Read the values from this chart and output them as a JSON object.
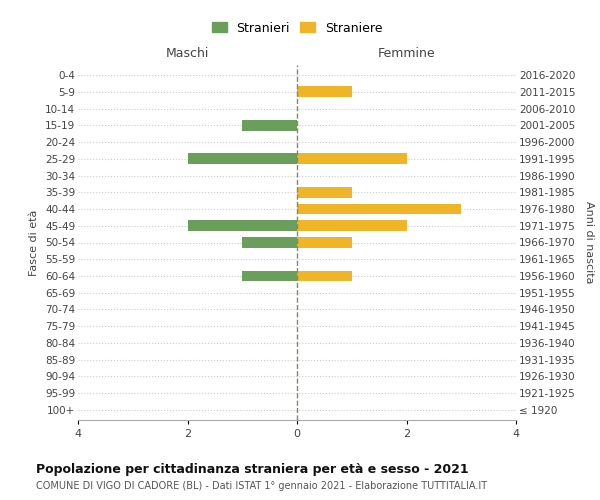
{
  "age_groups": [
    "0-4",
    "5-9",
    "10-14",
    "15-19",
    "20-24",
    "25-29",
    "30-34",
    "35-39",
    "40-44",
    "45-49",
    "50-54",
    "55-59",
    "60-64",
    "65-69",
    "70-74",
    "75-79",
    "80-84",
    "85-89",
    "90-94",
    "95-99",
    "100+"
  ],
  "birth_years": [
    "2016-2020",
    "2011-2015",
    "2006-2010",
    "2001-2005",
    "1996-2000",
    "1991-1995",
    "1986-1990",
    "1981-1985",
    "1976-1980",
    "1971-1975",
    "1966-1970",
    "1961-1965",
    "1956-1960",
    "1951-1955",
    "1946-1950",
    "1941-1945",
    "1936-1940",
    "1931-1935",
    "1926-1930",
    "1921-1925",
    "≤ 1920"
  ],
  "males": [
    0,
    0,
    0,
    1,
    0,
    2,
    0,
    0,
    0,
    2,
    1,
    0,
    1,
    0,
    0,
    0,
    0,
    0,
    0,
    0,
    0
  ],
  "females": [
    0,
    1,
    0,
    0,
    0,
    2,
    0,
    1,
    3,
    2,
    1,
    0,
    1,
    0,
    0,
    0,
    0,
    0,
    0,
    0,
    0
  ],
  "male_color": "#6a9e5b",
  "female_color": "#f0b429",
  "title": "Popolazione per cittadinanza straniera per età e sesso - 2021",
  "subtitle": "COMUNE DI VIGO DI CADORE (BL) - Dati ISTAT 1° gennaio 2021 - Elaborazione TUTTITALIA.IT",
  "legend_male": "Stranieri",
  "legend_female": "Straniere",
  "xlabel_left": "Maschi",
  "xlabel_right": "Femmine",
  "ylabel_left": "Fasce di età",
  "ylabel_right": "Anni di nascita",
  "xlim": 4,
  "bg_color": "#ffffff",
  "grid_color": "#cccccc",
  "center_line_color": "#888866"
}
